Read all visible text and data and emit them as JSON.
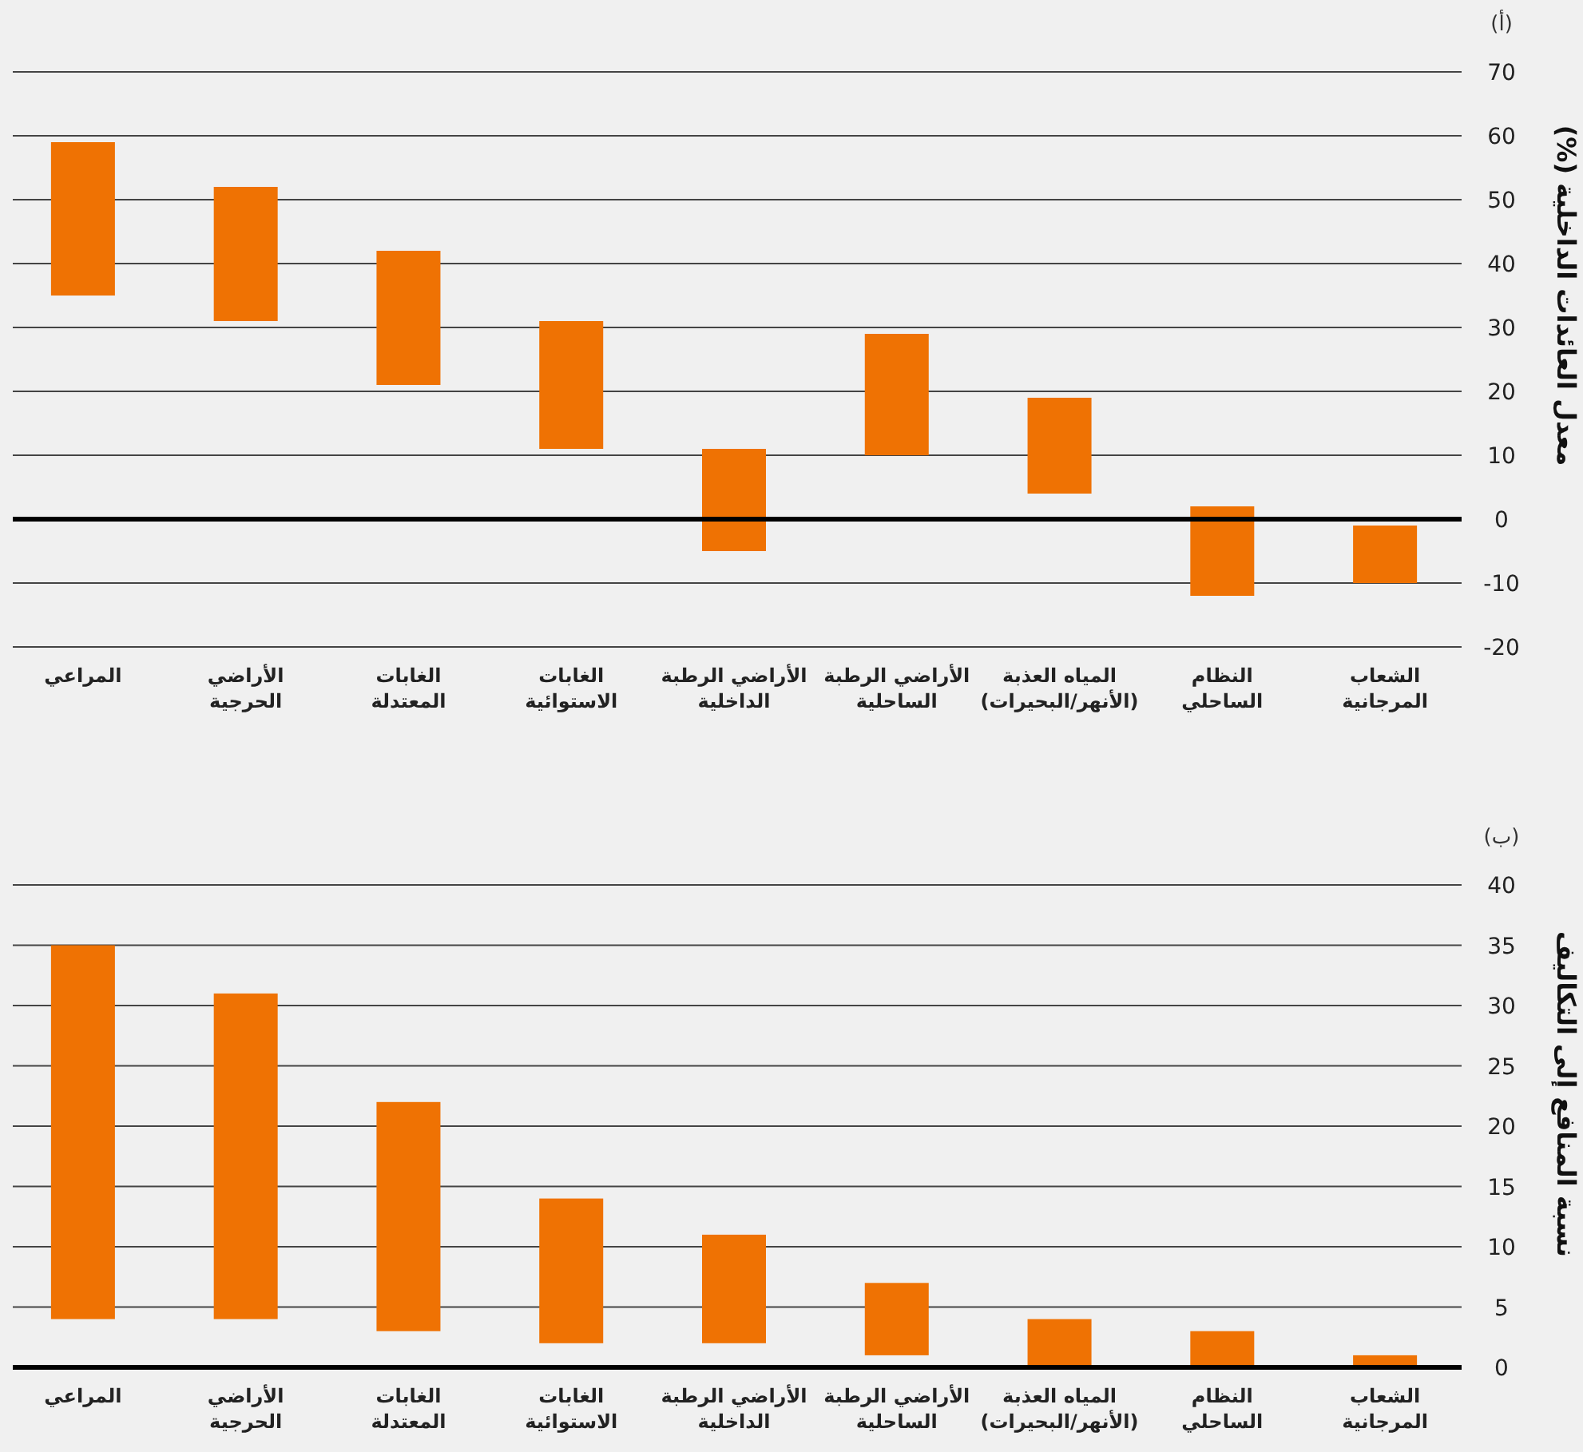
{
  "chart_data": [
    {
      "type": "bar",
      "annotations": [
        "(أ)"
      ],
      "ylabel": "معدل العائدات الداخلية (%)",
      "categories": [
        "المراعي",
        "الأراضي\nالحرجية",
        "الغابات\nالمعتدلة",
        "الغابات\nالاستوائية",
        "الأراضي الرطبة\nالداخلية",
        "الأراضي الرطبة\nالساحلية",
        "المياه العذبة\n(الأنهر/البحيرات)",
        "النظام\nالساحلي",
        "الشعاب\nالمرجانية"
      ],
      "base": [
        35,
        31,
        21,
        11,
        -5,
        10,
        4,
        -12,
        -10
      ],
      "values": [
        24,
        21,
        21,
        20,
        16,
        19,
        15,
        14,
        9
      ],
      "color": "#ef7203",
      "ylim": [
        -20,
        70
      ],
      "yticks": [
        -20,
        -10,
        0,
        10,
        20,
        30,
        40,
        50,
        60,
        70
      ],
      "grid": "y",
      "ref_lines": [
        {
          "axis": "y",
          "value": 0,
          "color": "#000000"
        }
      ]
    },
    {
      "type": "bar",
      "annotations": [
        "(ب)"
      ],
      "ylabel": "نسبة المنافع إلى التكاليف",
      "categories": [
        "المراعي",
        "الأراضي\nالحرجية",
        "الغابات\nالمعتدلة",
        "الغابات\nالاستوائية",
        "الأراضي الرطبة\nالداخلية",
        "الأراضي الرطبة\nالساحلية",
        "المياه العذبة\n(الأنهر/البحيرات)",
        "النظام\nالساحلي",
        "الشعاب\nالمرجانية"
      ],
      "base": [
        4,
        4,
        3,
        2,
        2,
        1,
        0,
        0,
        0
      ],
      "values": [
        31,
        27,
        19,
        12,
        9,
        6,
        4,
        3,
        1
      ],
      "color": "#ef7203",
      "ylim": [
        0,
        40
      ],
      "yticks": [
        0,
        5,
        10,
        15,
        20,
        25,
        30,
        35,
        40
      ],
      "grid": "y"
    }
  ]
}
